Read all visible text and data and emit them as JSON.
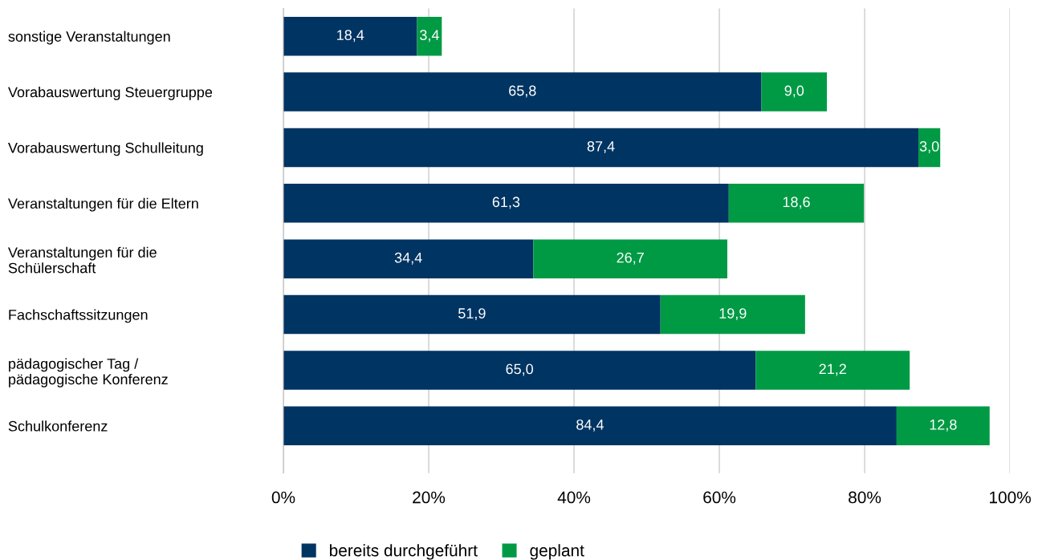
{
  "chart_data": {
    "type": "bar",
    "orientation": "horizontal",
    "stacked": true,
    "categories": [
      "sonstige Veranstaltungen",
      "Vorabauswertung Steuergruppe",
      "Vorabauswertung Schulleitung",
      "Veranstaltungen für die Eltern",
      "Veranstaltungen für die\nSchülerschaft",
      "Fachschaftssitzungen",
      "pädagogischer Tag /\npädagogische Konferenz",
      "Schulkonferenz"
    ],
    "series": [
      {
        "name": "bereits durchgeführt",
        "color": "#003462",
        "values": [
          18.4,
          65.8,
          87.4,
          61.3,
          34.4,
          51.9,
          65.0,
          84.4
        ],
        "value_labels": [
          "18,4",
          "65,8",
          "87,4",
          "61,3",
          "34,4",
          "51,9",
          "65,0",
          "84,4"
        ]
      },
      {
        "name": "geplant",
        "color": "#009a44",
        "values": [
          3.4,
          9.0,
          3.0,
          18.6,
          26.7,
          19.9,
          21.2,
          12.8
        ],
        "value_labels": [
          "3,4",
          "9,0",
          "3,0",
          "18,6",
          "26,7",
          "19,9",
          "21,2",
          "12,8"
        ]
      }
    ],
    "xlim": [
      0,
      100
    ],
    "xticks": [
      {
        "value": 0,
        "label": "0%"
      },
      {
        "value": 20,
        "label": "20%"
      },
      {
        "value": 40,
        "label": "40%"
      },
      {
        "value": 60,
        "label": "60%"
      },
      {
        "value": 80,
        "label": "80%"
      },
      {
        "value": 100,
        "label": "100%"
      }
    ],
    "grid": "x",
    "legend": "bottom"
  }
}
